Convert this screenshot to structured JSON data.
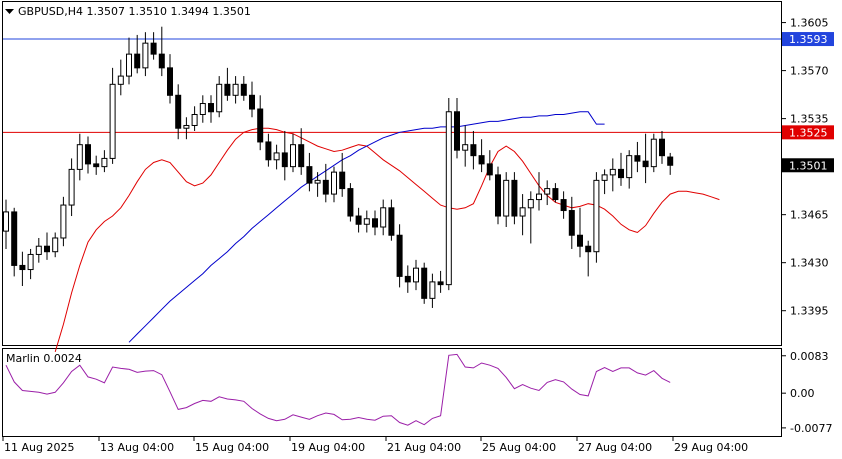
{
  "header": {
    "symbol_line": "GBPUSD,H4  1.3507 1.3510 1.3494 1.3501",
    "menu_arrow_icon": "triangle-down-icon"
  },
  "indicator": {
    "title": "Marlin 0.0024"
  },
  "colors": {
    "bull_candle": "#ffffff",
    "bear_candle": "#000000",
    "ma_fast": "#e00000",
    "ma_slow": "#0000cc",
    "oscillator": "#9b1fa8",
    "level_red": "#e00000",
    "level_blue": "#2244dd"
  },
  "price_axis": {
    "ticks": [
      "1.3605",
      "1.3570",
      "1.3535",
      "1.3465",
      "1.3430",
      "1.3395"
    ],
    "tick_values": [
      1.3605,
      1.357,
      1.3535,
      1.3465,
      1.343,
      1.3395
    ],
    "range": [
      1.337,
      1.362
    ]
  },
  "osc_axis": {
    "ticks": [
      "0.0083",
      "0.00",
      "-0.0077"
    ],
    "tick_values": [
      0.0083,
      0.0,
      -0.0077
    ],
    "range": [
      -0.0095,
      0.0098
    ]
  },
  "levels": [
    {
      "price": 1.3593,
      "label": "1.3593",
      "color": "#2244dd"
    },
    {
      "price": 1.3525,
      "label": "1.3525",
      "color": "#e00000"
    },
    {
      "price": 1.3501,
      "label": "1.3501",
      "color": "#000000",
      "current": true
    }
  ],
  "time_axis": {
    "labels": [
      "11 Aug 2025",
      "13 Aug 04:00",
      "15 Aug 04:00",
      "19 Aug 04:00",
      "21 Aug 04:00",
      "25 Aug 04:00",
      "27 Aug 04:00",
      "29 Aug 04:00"
    ]
  },
  "chart_data": {
    "type": "candlestick",
    "symbol": "GBPUSD",
    "timeframe": "H4",
    "candles": [
      [
        1.3453,
        1.3476,
        1.344,
        1.3467
      ],
      [
        1.3467,
        1.347,
        1.342,
        1.3428
      ],
      [
        1.3428,
        1.3438,
        1.3413,
        1.3425
      ],
      [
        1.3425,
        1.344,
        1.3418,
        1.3436
      ],
      [
        1.3436,
        1.3448,
        1.343,
        1.3442
      ],
      [
        1.3442,
        1.3452,
        1.3432,
        1.3438
      ],
      [
        1.3438,
        1.3452,
        1.3434,
        1.3448
      ],
      [
        1.3448,
        1.3478,
        1.3442,
        1.3472
      ],
      [
        1.3472,
        1.3506,
        1.3464,
        1.3498
      ],
      [
        1.3498,
        1.3524,
        1.349,
        1.3516
      ],
      [
        1.3516,
        1.3522,
        1.3495,
        1.3502
      ],
      [
        1.3502,
        1.3508,
        1.3494,
        1.35
      ],
      [
        1.35,
        1.3512,
        1.3496,
        1.3506
      ],
      [
        1.3506,
        1.3572,
        1.3502,
        1.356
      ],
      [
        1.356,
        1.3578,
        1.3552,
        1.3566
      ],
      [
        1.3566,
        1.3594,
        1.356,
        1.3582
      ],
      [
        1.3582,
        1.3596,
        1.3568,
        1.3572
      ],
      [
        1.3572,
        1.3598,
        1.3566,
        1.359
      ],
      [
        1.359,
        1.3598,
        1.3578,
        1.3582
      ],
      [
        1.3582,
        1.3602,
        1.3566,
        1.3572
      ],
      [
        1.3572,
        1.3582,
        1.3546,
        1.3552
      ],
      [
        1.3552,
        1.356,
        1.352,
        1.3528
      ],
      [
        1.3528,
        1.3536,
        1.352,
        1.353
      ],
      [
        1.353,
        1.3544,
        1.3526,
        1.3538
      ],
      [
        1.3538,
        1.3552,
        1.3532,
        1.3546
      ],
      [
        1.3546,
        1.3552,
        1.3532,
        1.354
      ],
      [
        1.354,
        1.3566,
        1.3536,
        1.356
      ],
      [
        1.356,
        1.3572,
        1.3548,
        1.3552
      ],
      [
        1.3552,
        1.3566,
        1.3546,
        1.356
      ],
      [
        1.356,
        1.3566,
        1.3548,
        1.3552
      ],
      [
        1.3552,
        1.3562,
        1.3536,
        1.3542
      ],
      [
        1.3542,
        1.3552,
        1.3512,
        1.3518
      ],
      [
        1.3518,
        1.3524,
        1.35,
        1.3505
      ],
      [
        1.3505,
        1.3516,
        1.3498,
        1.351
      ],
      [
        1.351,
        1.3526,
        1.349,
        1.35
      ],
      [
        1.35,
        1.3524,
        1.3496,
        1.3516
      ],
      [
        1.3516,
        1.3528,
        1.3494,
        1.35
      ],
      [
        1.35,
        1.351,
        1.3482,
        1.3488
      ],
      [
        1.3488,
        1.3496,
        1.3478,
        1.349
      ],
      [
        1.349,
        1.3502,
        1.3474,
        1.348
      ],
      [
        1.348,
        1.35,
        1.3474,
        1.3496
      ],
      [
        1.3496,
        1.351,
        1.3478,
        1.3484
      ],
      [
        1.3484,
        1.3488,
        1.346,
        1.3464
      ],
      [
        1.3464,
        1.347,
        1.3452,
        1.3458
      ],
      [
        1.3458,
        1.3468,
        1.3452,
        1.3462
      ],
      [
        1.3462,
        1.3468,
        1.345,
        1.3456
      ],
      [
        1.3456,
        1.3476,
        1.345,
        1.347
      ],
      [
        1.347,
        1.3476,
        1.3446,
        1.345
      ],
      [
        1.345,
        1.3458,
        1.3412,
        1.342
      ],
      [
        1.342,
        1.3428,
        1.3408,
        1.3416
      ],
      [
        1.3416,
        1.3432,
        1.341,
        1.3426
      ],
      [
        1.3426,
        1.343,
        1.34,
        1.3404
      ],
      [
        1.3404,
        1.3422,
        1.3397,
        1.3416
      ],
      [
        1.3416,
        1.3424,
        1.3408,
        1.3414
      ],
      [
        1.3414,
        1.355,
        1.341,
        1.354
      ],
      [
        1.354,
        1.355,
        1.3506,
        1.3512
      ],
      [
        1.3512,
        1.353,
        1.35,
        1.3516
      ],
      [
        1.3516,
        1.3526,
        1.3498,
        1.3508
      ],
      [
        1.3508,
        1.352,
        1.3496,
        1.3502
      ],
      [
        1.3502,
        1.3512,
        1.349,
        1.3494
      ],
      [
        1.3494,
        1.35,
        1.3458,
        1.3464
      ],
      [
        1.3464,
        1.3496,
        1.3456,
        1.349
      ],
      [
        1.349,
        1.3496,
        1.3458,
        1.3464
      ],
      [
        1.3464,
        1.348,
        1.345,
        1.347
      ],
      [
        1.347,
        1.3482,
        1.3444,
        1.3476
      ],
      [
        1.3476,
        1.3496,
        1.3468,
        1.348
      ],
      [
        1.348,
        1.349,
        1.3472,
        1.3484
      ],
      [
        1.3484,
        1.3488,
        1.3474,
        1.3476
      ],
      [
        1.3476,
        1.3482,
        1.3462,
        1.3468
      ],
      [
        1.3468,
        1.3478,
        1.344,
        1.345
      ],
      [
        1.345,
        1.347,
        1.3434,
        1.3442
      ],
      [
        1.3442,
        1.3446,
        1.342,
        1.3438
      ],
      [
        1.3438,
        1.3496,
        1.343,
        1.349
      ],
      [
        1.349,
        1.3498,
        1.348,
        1.3494
      ],
      [
        1.3494,
        1.3506,
        1.3482,
        1.3498
      ],
      [
        1.3498,
        1.351,
        1.3486,
        1.3492
      ],
      [
        1.3492,
        1.3512,
        1.3484,
        1.3508
      ],
      [
        1.3508,
        1.3518,
        1.3496,
        1.3504
      ],
      [
        1.3504,
        1.3524,
        1.3488,
        1.35
      ],
      [
        1.35,
        1.3524,
        1.3496,
        1.352
      ],
      [
        1.352,
        1.3526,
        1.3502,
        1.3508
      ],
      [
        1.3507,
        1.351,
        1.3494,
        1.3501
      ]
    ],
    "ma_fast": [
      1.3365,
      1.3385,
      1.3408,
      1.3428,
      1.3445,
      1.3454,
      1.346,
      1.3464,
      1.347,
      1.3479,
      1.3489,
      1.3498,
      1.3503,
      1.3505,
      1.3503,
      1.3496,
      1.3489,
      1.3486,
      1.3488,
      1.3494,
      1.3503,
      1.3512,
      1.352,
      1.3525,
      1.3527,
      1.3528,
      1.3528,
      1.3527,
      1.3525,
      1.3524,
      1.3521,
      1.3518,
      1.3515,
      1.3513,
      1.3511,
      1.3512,
      1.3514,
      1.3516,
      1.3515,
      1.351,
      1.3505,
      1.3501,
      1.3497,
      1.3492,
      1.3487,
      1.3482,
      1.3477,
      1.3472,
      1.347,
      1.3469,
      1.347,
      1.3473,
      1.3486,
      1.35,
      1.3511,
      1.3515,
      1.3511,
      1.3504,
      1.3495,
      1.3486,
      1.3479,
      1.3474,
      1.3472,
      1.347,
      1.3471,
      1.3473,
      1.3472,
      1.3469,
      1.3464,
      1.3458,
      1.3454,
      1.3452,
      1.3457,
      1.3466,
      1.3474,
      1.348,
      1.3482,
      1.3482,
      1.3481,
      1.348,
      1.3478,
      1.3476
    ],
    "ma_slow": [
      1.3372,
      1.3378,
      1.3384,
      1.339,
      1.3396,
      1.3402,
      1.3407,
      1.3412,
      1.3417,
      1.3422,
      1.3428,
      1.3433,
      1.3438,
      1.3444,
      1.3449,
      1.3455,
      1.346,
      1.3465,
      1.347,
      1.3475,
      1.348,
      1.3485,
      1.3489,
      1.3493,
      1.3497,
      1.3501,
      1.3505,
      1.3508,
      1.3512,
      1.3515,
      1.3518,
      1.3521,
      1.3523,
      1.3525,
      1.3526,
      1.3527,
      1.3528,
      1.3528,
      1.3529,
      1.3529,
      1.3529,
      1.353,
      1.3531,
      1.3532,
      1.3533,
      1.3533,
      1.3534,
      1.3535,
      1.3536,
      1.3536,
      1.3537,
      1.3537,
      1.3538,
      1.3538,
      1.3539,
      1.354,
      1.354,
      1.3531,
      1.3531
    ],
    "marlin": [
      0.0062,
      0.0025,
      0.0006,
      0.0004,
      0.0002,
      -0.0002,
      0.0002,
      0.0023,
      0.0048,
      0.0062,
      0.0036,
      0.0031,
      0.0023,
      0.0058,
      0.0055,
      0.0053,
      0.0046,
      0.0049,
      0.005,
      0.0041,
      0.0003,
      -0.0036,
      -0.0032,
      -0.0023,
      -0.0016,
      -0.0018,
      -0.0008,
      -0.0013,
      -0.0015,
      -0.0018,
      -0.0034,
      -0.0046,
      -0.0056,
      -0.0061,
      -0.0058,
      -0.0048,
      -0.0053,
      -0.0058,
      -0.005,
      -0.0044,
      -0.0047,
      -0.0059,
      -0.0058,
      -0.0054,
      -0.0058,
      -0.006,
      -0.0051,
      -0.005,
      -0.0065,
      -0.0071,
      -0.0061,
      -0.007,
      -0.0056,
      -0.005,
      0.0084,
      0.0086,
      0.0058,
      0.0056,
      0.0067,
      0.0062,
      0.0055,
      0.0035,
      0.001,
      0.0019,
      0.0011,
      0.0006,
      0.0024,
      0.003,
      0.0025,
      0.0009,
      -0.0003,
      -0.0006,
      0.0048,
      0.0057,
      0.0048,
      0.0056,
      0.0056,
      0.0045,
      0.004,
      0.005,
      0.0033,
      0.0024
    ],
    "ylim": [
      1.337,
      1.362
    ],
    "osc_ylim": [
      -0.0095,
      0.0098
    ],
    "grid": false,
    "legend": "none"
  }
}
